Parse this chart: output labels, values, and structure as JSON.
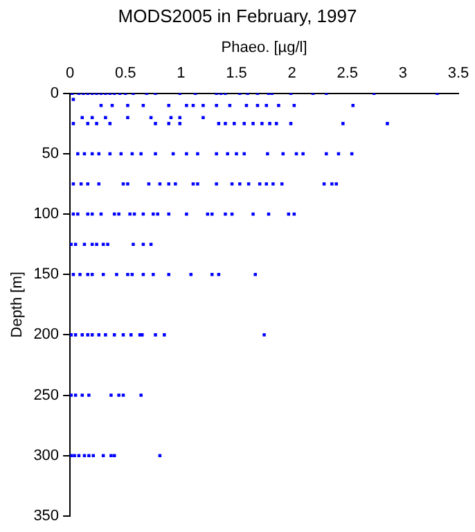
{
  "chart_data": {
    "type": "scatter",
    "title": "MODS2005 in February, 1997",
    "xlabel": "Phaeo. [µg/l]",
    "ylabel": "Depth [m]",
    "xlim": [
      0,
      3.5
    ],
    "xticks": [
      0,
      0.5,
      1,
      1.5,
      2,
      2.5,
      3,
      3.5
    ],
    "ylim": [
      350,
      0
    ],
    "yticks": [
      0,
      50,
      100,
      150,
      200,
      250,
      300,
      350
    ],
    "grid": false,
    "legend": false,
    "marker": "square",
    "series": [
      {
        "color": "#0000ff",
        "x": [
          0.02,
          0.08,
          0.12,
          0.16,
          0.2,
          0.24,
          0.28,
          0.32,
          0.36,
          0.4,
          0.45,
          0.5,
          0.57,
          0.69,
          0.77,
          0.99,
          1.13,
          1.32,
          1.36,
          1.4,
          1.53,
          1.6,
          1.69,
          1.79,
          1.82,
          1.99,
          2.19,
          2.31,
          2.74,
          3.31,
          0.03,
          0.28,
          0.38,
          0.52,
          0.66,
          0.89,
          1.05,
          1.11,
          1.2,
          1.32,
          1.44,
          1.59,
          1.69,
          1.77,
          1.88,
          2.02,
          2.55,
          0.11,
          0.2,
          0.32,
          0.52,
          0.73,
          0.91,
          0.99,
          1.2,
          0.03,
          0.16,
          0.24,
          0.36,
          0.77,
          0.89,
          0.99,
          1.34,
          1.4,
          1.48,
          1.57,
          1.65,
          1.73,
          1.8,
          1.86,
          1.99,
          2.46,
          2.86,
          0.07,
          0.13,
          0.2,
          0.26,
          0.36,
          0.46,
          0.56,
          0.64,
          0.77,
          0.93,
          1.05,
          1.15,
          1.32,
          1.42,
          1.5,
          1.57,
          1.78,
          1.92,
          2.04,
          2.1,
          2.31,
          2.42,
          2.54,
          0.03,
          0.1,
          0.16,
          0.26,
          0.48,
          0.52,
          0.71,
          0.81,
          0.89,
          0.95,
          1.11,
          1.15,
          1.32,
          1.46,
          1.53,
          1.61,
          1.71,
          1.77,
          1.83,
          1.91,
          2.29,
          2.36,
          2.4,
          0.03,
          0.07,
          0.16,
          0.2,
          0.28,
          0.4,
          0.44,
          0.54,
          0.58,
          0.66,
          0.75,
          0.79,
          0.89,
          1.05,
          1.24,
          1.28,
          1.4,
          1.46,
          1.65,
          1.79,
          1.97,
          2.02,
          0.01,
          0.05,
          0.13,
          0.2,
          0.24,
          0.3,
          0.34,
          0.57,
          0.66,
          0.73,
          0.03,
          0.09,
          0.16,
          0.2,
          0.3,
          0.42,
          0.52,
          0.56,
          0.66,
          0.75,
          0.89,
          1.09,
          1.28,
          1.34,
          1.67,
          0.01,
          0.05,
          0.11,
          0.16,
          0.2,
          0.26,
          0.32,
          0.4,
          0.48,
          0.55,
          0.63,
          0.65,
          0.77,
          0.85,
          1.75,
          0.01,
          0.05,
          0.11,
          0.17,
          0.37,
          0.44,
          0.48,
          0.64,
          0.01,
          0.04,
          0.08,
          0.13,
          0.17,
          0.21,
          0.3,
          0.37,
          0.4,
          0.81
        ],
        "values": [
          0,
          0,
          0,
          0,
          0,
          0,
          0,
          0,
          0,
          0,
          0,
          0,
          0,
          0,
          0,
          0,
          0,
          0,
          0,
          0,
          0,
          0,
          0,
          0,
          0,
          0,
          0,
          0,
          0,
          0,
          5,
          10,
          10,
          10,
          10,
          10,
          10,
          10,
          10,
          10,
          10,
          10,
          10,
          10,
          10,
          10,
          10,
          20,
          20,
          20,
          20,
          20,
          20,
          20,
          20,
          25,
          25,
          25,
          25,
          25,
          25,
          25,
          25,
          25,
          25,
          25,
          25,
          25,
          25,
          25,
          25,
          25,
          25,
          50,
          50,
          50,
          50,
          50,
          50,
          50,
          50,
          50,
          50,
          50,
          50,
          50,
          50,
          50,
          50,
          50,
          50,
          50,
          50,
          50,
          50,
          50,
          75,
          75,
          75,
          75,
          75,
          75,
          75,
          75,
          75,
          75,
          75,
          75,
          75,
          75,
          75,
          75,
          75,
          75,
          75,
          75,
          75,
          75,
          75,
          100,
          100,
          100,
          100,
          100,
          100,
          100,
          100,
          100,
          100,
          100,
          100,
          100,
          100,
          100,
          100,
          100,
          100,
          100,
          100,
          100,
          100,
          125,
          125,
          125,
          125,
          125,
          125,
          125,
          125,
          125,
          125,
          150,
          150,
          150,
          150,
          150,
          150,
          150,
          150,
          150,
          150,
          150,
          150,
          150,
          150,
          150,
          200,
          200,
          200,
          200,
          200,
          200,
          200,
          200,
          200,
          200,
          200,
          200,
          200,
          200,
          200,
          250,
          250,
          250,
          250,
          250,
          250,
          250,
          250,
          300,
          300,
          300,
          300,
          300,
          300,
          300,
          300,
          300,
          300
        ]
      }
    ]
  }
}
